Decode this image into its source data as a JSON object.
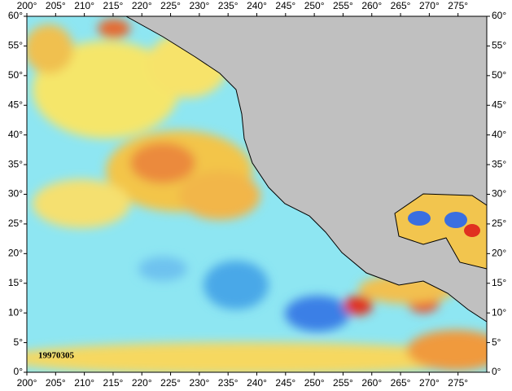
{
  "chart_data": {
    "type": "map",
    "date_label": "19970305",
    "xlim": [
      200,
      280
    ],
    "ylim": [
      0,
      60
    ],
    "xticks": [
      {
        "value": 200,
        "label": "200°"
      },
      {
        "value": 205,
        "label": "205°"
      },
      {
        "value": 210,
        "label": "210°"
      },
      {
        "value": 215,
        "label": "215°"
      },
      {
        "value": 220,
        "label": "220°"
      },
      {
        "value": 225,
        "label": "225°"
      },
      {
        "value": 230,
        "label": "230°"
      },
      {
        "value": 235,
        "label": "235°"
      },
      {
        "value": 240,
        "label": "240°"
      },
      {
        "value": 245,
        "label": "245°"
      },
      {
        "value": 250,
        "label": "250°"
      },
      {
        "value": 255,
        "label": "255°"
      },
      {
        "value": 260,
        "label": "260°"
      },
      {
        "value": 265,
        "label": "265°"
      },
      {
        "value": 270,
        "label": "270°"
      },
      {
        "value": 275,
        "label": "275°"
      }
    ],
    "yticks": [
      {
        "value": 0,
        "label": "0°"
      },
      {
        "value": 5,
        "label": "5°"
      },
      {
        "value": 10,
        "label": "10°"
      },
      {
        "value": 15,
        "label": "15°"
      },
      {
        "value": 20,
        "label": "20°"
      },
      {
        "value": 25,
        "label": "25°"
      },
      {
        "value": 30,
        "label": "30°"
      },
      {
        "value": 35,
        "label": "35°"
      },
      {
        "value": 40,
        "label": "40°"
      },
      {
        "value": 45,
        "label": "45°"
      },
      {
        "value": 50,
        "label": "50°"
      },
      {
        "value": 55,
        "label": "55°"
      },
      {
        "value": 60,
        "label": "60°"
      }
    ]
  }
}
